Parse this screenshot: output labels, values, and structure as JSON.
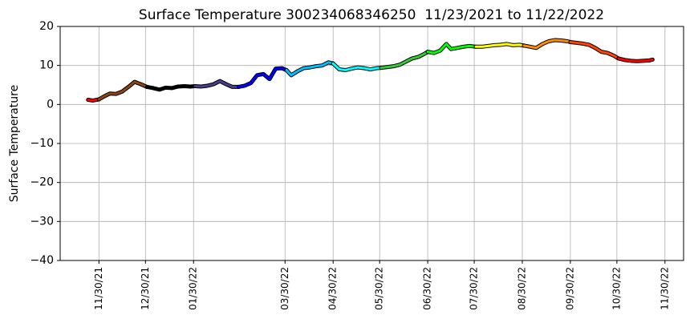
{
  "chart_data": {
    "type": "line",
    "title": "Surface Temperature 300234068346250  11/23/2021 to 11/22/2022",
    "y_label": "Surface Temperature",
    "grid": true,
    "xlim": [
      "11/05/21",
      "12/12/22"
    ],
    "xticks": [
      "11/30/21",
      "12/30/21",
      "01/30/22",
      "03/30/22",
      "04/30/22",
      "05/30/22",
      "06/30/22",
      "07/30/22",
      "08/30/22",
      "09/30/22",
      "10/30/22",
      "11/30/22"
    ],
    "ylim": [
      -40,
      20
    ],
    "yticks": [
      {
        "value": -40,
        "label": "−40"
      },
      {
        "value": -30,
        "label": "−30"
      },
      {
        "value": -20,
        "label": "−20"
      },
      {
        "value": -10,
        "label": "−10"
      },
      0,
      10,
      20
    ],
    "series": [
      {
        "color": "#ff0000",
        "x": [
          "11/23/21",
          "11/26/21",
          "11/30/21"
        ],
        "values": [
          1.2,
          1.0,
          1.3
        ]
      },
      {
        "color": "#8b4513",
        "x": [
          "11/30/21",
          "12/03/21",
          "12/07/21",
          "12/11/21",
          "12/15/21",
          "12/19/21",
          "12/23/21",
          "12/27/21",
          "12/31/21"
        ],
        "values": [
          1.3,
          2,
          2.8,
          2.7,
          3.3,
          4.5,
          5.8,
          5.2,
          4.5
        ]
      },
      {
        "color": "#000000",
        "x": [
          "12/31/21",
          "01/04/22",
          "01/08/22",
          "01/12/22",
          "01/16/22",
          "01/20/22",
          "01/24/22",
          "01/28/22",
          "01/31/22"
        ],
        "values": [
          4.5,
          4.2,
          3.8,
          4.3,
          4.2,
          4.6,
          4.7,
          4.6,
          4.7
        ]
      },
      {
        "color": "#483d8b",
        "x": [
          "01/31/22",
          "02/04/22",
          "02/08/22",
          "02/12/22",
          "02/16/22",
          "02/20/22",
          "02/24/22",
          "02/28/22"
        ],
        "values": [
          4.7,
          4.6,
          4.8,
          5.2,
          6,
          5.2,
          4.5,
          4.5
        ]
      },
      {
        "color": "#0000ff",
        "x": [
          "02/28/22",
          "03/04/22",
          "03/08/22",
          "03/12/22",
          "03/16/22",
          "03/20/22",
          "03/24/22",
          "03/28/22",
          "03/31/22"
        ],
        "values": [
          4.5,
          4.8,
          5.5,
          7.5,
          7.8,
          6.5,
          9.2,
          9.3,
          8.8
        ]
      },
      {
        "color": "#00bfff",
        "x": [
          "03/31/22",
          "04/03/22",
          "04/07/22",
          "04/11/22",
          "04/15/22",
          "04/19/22",
          "04/23/22",
          "04/27/22",
          "04/30/22"
        ],
        "values": [
          8.8,
          7.5,
          8.5,
          9.3,
          9.5,
          9.8,
          10,
          10.8,
          10.5
        ]
      },
      {
        "color": "#00ffff",
        "x": [
          "04/30/22",
          "05/04/22",
          "05/08/22",
          "05/12/22",
          "05/16/22",
          "05/20/22",
          "05/24/22",
          "05/28/22",
          "05/31/22"
        ],
        "values": [
          10.5,
          9,
          8.8,
          9.2,
          9.5,
          9.3,
          9.0,
          9.3,
          9.4
        ]
      },
      {
        "color": "#32cd32",
        "x": [
          "05/31/22",
          "06/04/22",
          "06/08/22",
          "06/12/22",
          "06/16/22",
          "06/20/22",
          "06/24/22",
          "06/28/22",
          "06/30/22"
        ],
        "values": [
          9.4,
          9.6,
          9.8,
          10.2,
          11,
          11.8,
          12.2,
          13,
          13.5
        ]
      },
      {
        "color": "#00ff00",
        "x": [
          "06/30/22",
          "07/04/22",
          "07/08/22",
          "07/12/22",
          "07/15/22",
          "07/19/22",
          "07/23/22",
          "07/27/22",
          "07/31/22"
        ],
        "values": [
          13.5,
          13.2,
          13.8,
          15.5,
          14.2,
          14.5,
          14.8,
          15,
          14.8
        ]
      },
      {
        "color": "#ffff00",
        "x": [
          "07/31/22",
          "08/04/22",
          "08/08/22",
          "08/12/22",
          "08/16/22",
          "08/20/22",
          "08/24/22",
          "08/28/22",
          "08/31/22"
        ],
        "values": [
          14.8,
          14.8,
          15,
          15.2,
          15.3,
          15.5,
          15.2,
          15.3,
          15.1
        ]
      },
      {
        "color": "#ff8c00",
        "x": [
          "08/31/22",
          "09/04/22",
          "09/08/22",
          "09/12/22",
          "09/16/22",
          "09/20/22",
          "09/24/22",
          "09/28/22",
          "09/30/22"
        ],
        "values": [
          15.1,
          14.8,
          14.5,
          15.5,
          16.2,
          16.5,
          16.4,
          16.2,
          16
        ]
      },
      {
        "color": "#ff4500",
        "x": [
          "09/30/22",
          "10/04/22",
          "10/08/22",
          "10/12/22",
          "10/16/22",
          "10/20/22",
          "10/24/22",
          "10/28/22",
          "10/31/22"
        ],
        "values": [
          16,
          15.8,
          15.6,
          15.3,
          14.5,
          13.5,
          13.2,
          12.5,
          11.8
        ]
      },
      {
        "color": "#ff0000",
        "x": [
          "10/31/22",
          "11/04/22",
          "11/08/22",
          "11/12/22",
          "11/16/22",
          "11/20/22",
          "11/22/22"
        ],
        "values": [
          11.8,
          11.4,
          11.2,
          11.1,
          11.2,
          11.3,
          11.5
        ]
      }
    ]
  }
}
